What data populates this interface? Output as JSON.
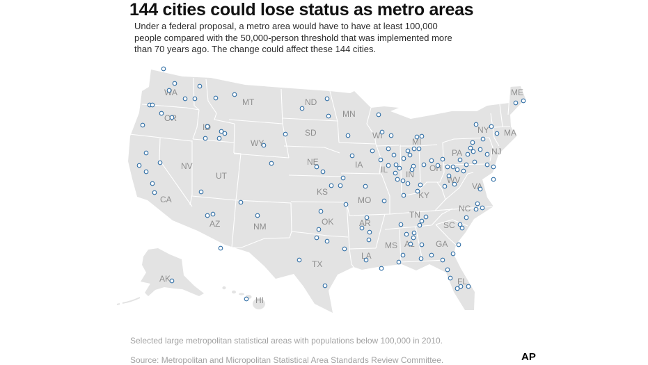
{
  "title": "144 cities could lose status as metro areas",
  "subtitle": "Under a federal proposal, a metro area would have to have at least 100,000 people compared with the 50,000-person threshold that was implemented more than 70 years ago. The change could affect these 144 cities.",
  "map": {
    "region": "United States",
    "state_labels": [
      {
        "id": "wa",
        "text": "WA"
      },
      {
        "id": "or",
        "text": "OR"
      },
      {
        "id": "id",
        "text": "ID"
      },
      {
        "id": "mt",
        "text": "MT"
      },
      {
        "id": "nd",
        "text": "ND"
      },
      {
        "id": "mn",
        "text": "MN"
      },
      {
        "id": "sd",
        "text": "SD"
      },
      {
        "id": "wy",
        "text": "WY"
      },
      {
        "id": "wi",
        "text": "WI"
      },
      {
        "id": "mi",
        "text": "MI"
      },
      {
        "id": "ny",
        "text": "NY"
      },
      {
        "id": "me",
        "text": "ME"
      },
      {
        "id": "ma",
        "text": "MA"
      },
      {
        "id": "nv",
        "text": "NV"
      },
      {
        "id": "ut",
        "text": "UT"
      },
      {
        "id": "ne",
        "text": "NE"
      },
      {
        "id": "ia",
        "text": "IA"
      },
      {
        "id": "il",
        "text": "IL"
      },
      {
        "id": "in",
        "text": "IN"
      },
      {
        "id": "oh",
        "text": "OH"
      },
      {
        "id": "pa",
        "text": "PA"
      },
      {
        "id": "nj",
        "text": "NJ"
      },
      {
        "id": "ca",
        "text": "CA"
      },
      {
        "id": "ks",
        "text": "KS"
      },
      {
        "id": "mo",
        "text": "MO"
      },
      {
        "id": "ky",
        "text": "KY"
      },
      {
        "id": "wv",
        "text": "WV"
      },
      {
        "id": "va",
        "text": "VA"
      },
      {
        "id": "az",
        "text": "AZ"
      },
      {
        "id": "nm",
        "text": "NM"
      },
      {
        "id": "ok",
        "text": "OK"
      },
      {
        "id": "ar",
        "text": "AR"
      },
      {
        "id": "tn",
        "text": "TN"
      },
      {
        "id": "nc",
        "text": "NC"
      },
      {
        "id": "sc",
        "text": "SC"
      },
      {
        "id": "ms",
        "text": "MS"
      },
      {
        "id": "al",
        "text": "AL"
      },
      {
        "id": "ga",
        "text": "GA"
      },
      {
        "id": "tx",
        "text": "TX"
      },
      {
        "id": "la",
        "text": "LA"
      },
      {
        "id": "fl",
        "text": "FL"
      },
      {
        "id": "ak",
        "text": "AK"
      },
      {
        "id": "hi",
        "text": "HI"
      }
    ],
    "colors": {
      "land": "#e3e3e3",
      "state_border": "#ffffff",
      "marker_stroke": "#2e6da4",
      "marker_fill": "#ffffff",
      "label": "#8e8e8e"
    },
    "marker_count": 144
  },
  "note": "Selected large metropolitan statistical areas with populations below 100,000 in 2010.",
  "source": "Source: Metropolitan and Micropolitan Statistical Area Standards Review Committee.",
  "credit": "AP"
}
